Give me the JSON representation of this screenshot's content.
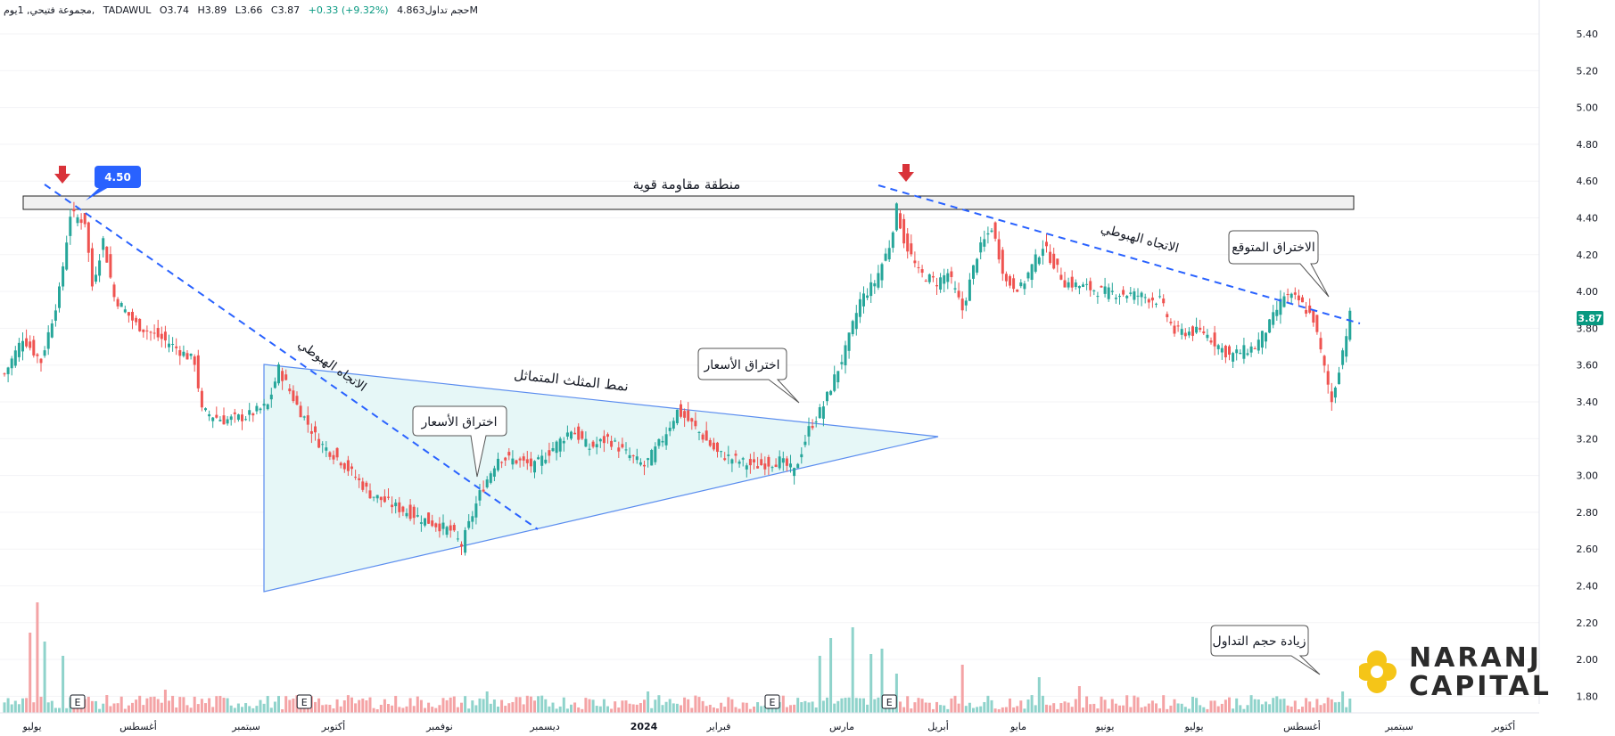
{
  "header": {
    "name": "مجموعة فتيحي, 1يوم,",
    "exchange": "TADAWUL",
    "open": "O3.74",
    "high": "H3.89",
    "low": "L3.66",
    "close": "C3.87",
    "change": "+0.33 (+9.32%)",
    "volume": "حجم تداول4.863M"
  },
  "colors": {
    "up": "#26a69a",
    "down": "#ef5350",
    "up_volume": "#8fd3cb",
    "down_volume": "#f4a3a5",
    "trendline": "#2962ff",
    "triangle_fill": "#e6f7f7",
    "triangle_stroke": "#5b8def",
    "arrow": "#d93239",
    "badge": "#2962ff",
    "price_tag": "#089981"
  },
  "chart_data": {
    "type": "candlestick",
    "y_ticks": [
      "5.40",
      "5.20",
      "5.00",
      "4.80",
      "4.60",
      "4.40",
      "4.20",
      "4.00",
      "3.80",
      "3.60",
      "3.40",
      "3.20",
      "3.00",
      "2.80",
      "2.60",
      "2.40",
      "2.20",
      "2.00",
      "1.80"
    ],
    "ylim": [
      1.75,
      5.47
    ],
    "x_ticks": [
      "يوليو",
      "أغسطس",
      "سبتمبر",
      "أكتوبر",
      "نوفمبر",
      "ديسمبر",
      "2024",
      "فبراير",
      "مارس",
      "أبريل",
      "مايو",
      "يونيو",
      "يوليو",
      "أغسطس",
      "سبتمبر",
      "أكتوبر"
    ],
    "x_tick_bold": [
      false,
      false,
      false,
      false,
      false,
      false,
      true,
      false,
      false,
      false,
      false,
      false,
      false,
      false,
      false,
      false
    ],
    "last_price": "3.87",
    "resistance_label": "منطقة مقاومة قوية",
    "resistance_zone": [
      4.48,
      4.56
    ],
    "resistance_badge": "4.50",
    "downtrend_label_1": "الاتجاه الهبوطي",
    "downtrend_label_2": "الاتجاه الهبوطي",
    "triangle_label": "نمط المثلث المتماثل",
    "callout_breakout_1": "اختراق الأسعار",
    "callout_breakout_2": "اختراق الأسعار",
    "callout_expected": "الاختراق المتوقع",
    "callout_volume": "زيادة حجم التداول",
    "earnings_marker": "E",
    "earnings_bars": [
      20,
      82,
      210,
      242
    ],
    "key_closes": [
      [
        0,
        3.55
      ],
      [
        5,
        3.75
      ],
      [
        10,
        3.62
      ],
      [
        15,
        4.0
      ],
      [
        18,
        4.42
      ],
      [
        22,
        4.38
      ],
      [
        24,
        4.03
      ],
      [
        27,
        4.28
      ],
      [
        30,
        3.97
      ],
      [
        36,
        3.82
      ],
      [
        45,
        3.72
      ],
      [
        52,
        3.62
      ],
      [
        54,
        3.35
      ],
      [
        60,
        3.3
      ],
      [
        66,
        3.32
      ],
      [
        72,
        3.38
      ],
      [
        75,
        3.58
      ],
      [
        80,
        3.38
      ],
      [
        86,
        3.18
      ],
      [
        92,
        3.08
      ],
      [
        100,
        2.9
      ],
      [
        108,
        2.82
      ],
      [
        116,
        2.75
      ],
      [
        122,
        2.7
      ],
      [
        125,
        2.62
      ],
      [
        130,
        2.9
      ],
      [
        135,
        3.1
      ],
      [
        140,
        3.08
      ],
      [
        145,
        3.05
      ],
      [
        150,
        3.15
      ],
      [
        155,
        3.25
      ],
      [
        160,
        3.15
      ],
      [
        165,
        3.2
      ],
      [
        170,
        3.12
      ],
      [
        175,
        3.05
      ],
      [
        180,
        3.2
      ],
      [
        184,
        3.35
      ],
      [
        188,
        3.28
      ],
      [
        195,
        3.12
      ],
      [
        205,
        3.05
      ],
      [
        212,
        3.08
      ],
      [
        216,
        3.02
      ],
      [
        220,
        3.25
      ],
      [
        224,
        3.38
      ],
      [
        230,
        3.68
      ],
      [
        234,
        3.95
      ],
      [
        238,
        4.05
      ],
      [
        242,
        4.25
      ],
      [
        244,
        4.45
      ],
      [
        246,
        4.28
      ],
      [
        250,
        4.1
      ],
      [
        255,
        4.05
      ],
      [
        258,
        4.1
      ],
      [
        262,
        3.9
      ],
      [
        266,
        4.2
      ],
      [
        270,
        4.35
      ],
      [
        274,
        4.05
      ],
      [
        278,
        4.02
      ],
      [
        284,
        4.25
      ],
      [
        290,
        4.05
      ],
      [
        300,
        4.0
      ],
      [
        310,
        3.98
      ],
      [
        316,
        3.95
      ],
      [
        320,
        3.78
      ],
      [
        328,
        3.78
      ],
      [
        335,
        3.65
      ],
      [
        342,
        3.7
      ],
      [
        346,
        3.82
      ],
      [
        350,
        3.98
      ],
      [
        354,
        3.95
      ],
      [
        358,
        3.85
      ],
      [
        361,
        3.58
      ],
      [
        363,
        3.4
      ],
      [
        366,
        3.68
      ],
      [
        368,
        3.87
      ]
    ],
    "volume_peaks": [
      [
        7,
        0.45
      ],
      [
        9,
        0.62
      ],
      [
        11,
        0.4
      ],
      [
        16,
        0.32
      ],
      [
        44,
        0.13
      ],
      [
        98,
        0.08
      ],
      [
        132,
        0.12
      ],
      [
        176,
        0.12
      ],
      [
        223,
        0.32
      ],
      [
        226,
        0.42
      ],
      [
        232,
        0.48
      ],
      [
        237,
        0.33
      ],
      [
        240,
        0.36
      ],
      [
        244,
        0.22
      ],
      [
        262,
        0.27
      ],
      [
        283,
        0.2
      ],
      [
        294,
        0.15
      ],
      [
        366,
        0.12
      ]
    ],
    "volume_direction": "up = teal, down = pink"
  },
  "branding": {
    "line1": "NARANJ",
    "line2": "CAPITAL"
  }
}
